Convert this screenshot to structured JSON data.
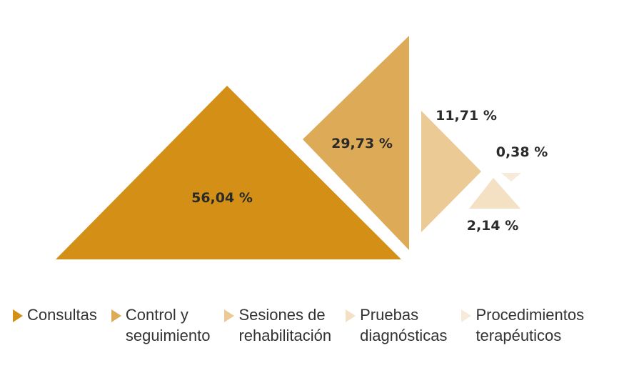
{
  "chart_data": {
    "type": "pie",
    "categories": [
      "Consultas",
      "Control y seguimiento",
      "Sesiones de rehabilitación",
      "Pruebas diagnósticas",
      "Procedimientos terapéuticos"
    ],
    "values": [
      56.04,
      29.73,
      11.71,
      2.14,
      0.38
    ],
    "value_labels": [
      "56,04 %",
      "29,73 %",
      "11,71 %",
      "2,14 %",
      "0,38 %"
    ],
    "colors": [
      "#d38f16",
      "#ddaa58",
      "#ecca96",
      "#f4e1c4",
      "#f8ead8"
    ],
    "legend_placement": "bottom"
  },
  "legend": [
    {
      "line1": "Consultas",
      "line2": ""
    },
    {
      "line1": "Control y",
      "line2": "seguimiento"
    },
    {
      "line1": "Sesiones de",
      "line2": "rehabilitación"
    },
    {
      "line1": "Pruebas",
      "line2": "diagnósticas"
    },
    {
      "line1": "Procedimientos",
      "line2": "terapéuticos"
    }
  ]
}
